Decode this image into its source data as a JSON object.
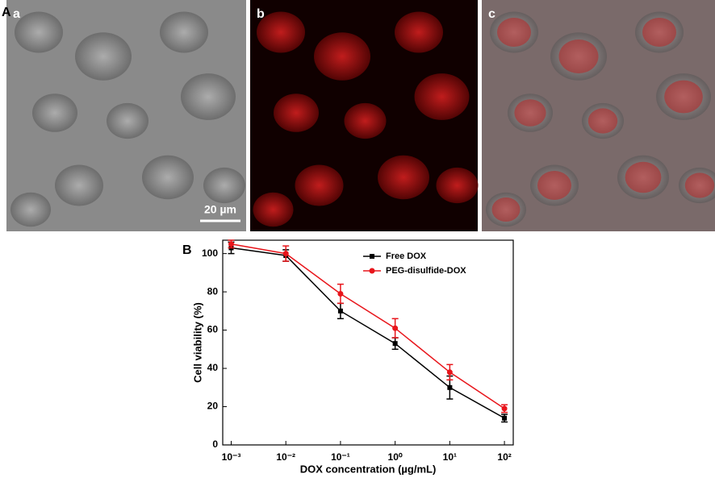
{
  "figure": {
    "panel_a_label": "A",
    "panel_b_label": "B",
    "images": [
      {
        "label": "a"
      },
      {
        "label": "b"
      },
      {
        "label": "c"
      }
    ],
    "scale_bar": "20 µm"
  },
  "chart_data": {
    "type": "line",
    "x_label": "DOX concentration (µg/mL)",
    "y_label": "Cell viability (%)",
    "x": [
      0.001,
      0.01,
      0.1,
      1,
      10,
      100
    ],
    "xscale": "log",
    "xlim": [
      0.0007,
      145
    ],
    "xticks": [
      {
        "value": 0.001,
        "label": "10⁻³"
      },
      {
        "value": 0.01,
        "label": "10⁻²"
      },
      {
        "value": 0.1,
        "label": "10⁻¹"
      },
      {
        "value": 1,
        "label": "10⁰"
      },
      {
        "value": 10,
        "label": "10¹"
      },
      {
        "value": 100,
        "label": "10²"
      }
    ],
    "ylim": [
      0,
      107
    ],
    "yticks": [
      0,
      20,
      40,
      60,
      80,
      100
    ],
    "legend": "upper right",
    "series": [
      {
        "name": "Free DOX",
        "color": "#000000",
        "marker": "square",
        "values": [
          103,
          99,
          70,
          53,
          30,
          14
        ],
        "errors": [
          3,
          3,
          4,
          3,
          6,
          2
        ]
      },
      {
        "name": "PEG-disulfide-DOX",
        "color": "#e8151b",
        "marker": "circle",
        "values": [
          105,
          100,
          79,
          61,
          38,
          19
        ],
        "errors": [
          2,
          4,
          5,
          5,
          4,
          2
        ]
      }
    ]
  }
}
